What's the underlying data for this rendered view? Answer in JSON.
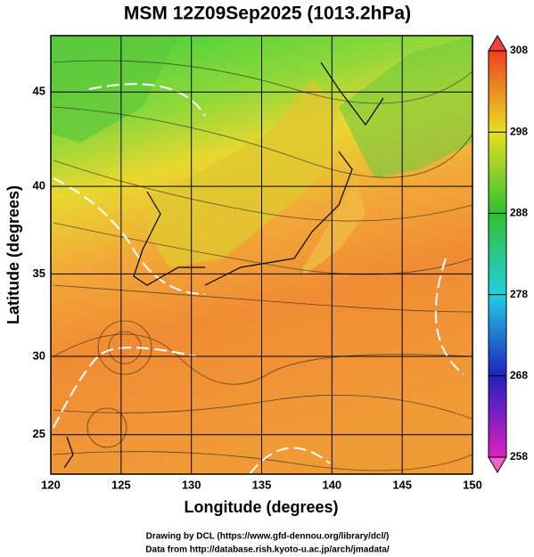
{
  "title": "MSM 12Z09Sep2025 (1013.2hPa)",
  "x_axis": {
    "label": "Longitude (degrees)",
    "lim": [
      120,
      150
    ],
    "ticks": [
      120,
      125,
      130,
      135,
      140,
      145,
      150
    ]
  },
  "y_axis": {
    "label": "Latitude  (degrees)",
    "lim": [
      22.4,
      47.8
    ],
    "ticks": [
      25,
      30,
      35,
      40,
      45
    ]
  },
  "colorbar": {
    "lim": [
      258,
      308
    ],
    "ticks": [
      258,
      268,
      278,
      288,
      298,
      308
    ]
  },
  "credits": [
    "Drawing by DCL (https://www.gfd-dennou.org/library/dcl/)",
    "Data from http://database.rish.kyoto-u.ac.jp/arch/jmadata/"
  ]
}
